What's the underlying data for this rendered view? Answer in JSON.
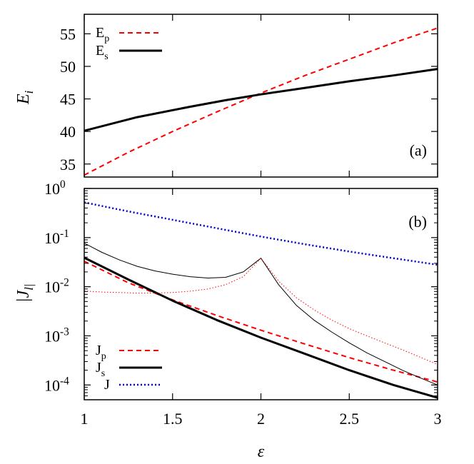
{
  "chart_data": [
    {
      "type": "line",
      "panel_label": "(a)",
      "ylabel": "E_i",
      "xlim": [
        1,
        3
      ],
      "ylim": [
        33,
        58
      ],
      "y_scale": "linear",
      "xticks": [
        1,
        1.5,
        2,
        2.5,
        3
      ],
      "xtick_labels": [
        "",
        "",
        "",
        "",
        ""
      ],
      "yticks": [
        35,
        40,
        45,
        50,
        55
      ],
      "ytick_labels": [
        "35",
        "40",
        "45",
        "50",
        "55"
      ],
      "legend_placement": "top-left",
      "series": [
        {
          "name": "E_p",
          "legend_main": "E",
          "legend_sub": "p",
          "color": "#ff0000",
          "style": "dashed",
          "width": 2,
          "points": [
            [
              1.0,
              33.3
            ],
            [
              1.25,
              36.8
            ],
            [
              1.5,
              40.0
            ],
            [
              1.75,
              43.0
            ],
            [
              2.0,
              45.9
            ],
            [
              2.25,
              48.6
            ],
            [
              2.5,
              51.1
            ],
            [
              2.75,
              53.6
            ],
            [
              3.0,
              55.9
            ]
          ]
        },
        {
          "name": "E_s",
          "legend_main": "E",
          "legend_sub": "s",
          "color": "#000000",
          "style": "solid",
          "width": 3,
          "points": [
            [
              1.0,
              40.1
            ],
            [
              1.3,
              42.2
            ],
            [
              1.6,
              43.8
            ],
            [
              1.8,
              44.8
            ],
            [
              2.0,
              45.7
            ],
            [
              2.25,
              46.7
            ],
            [
              2.5,
              47.7
            ],
            [
              2.75,
              48.6
            ],
            [
              3.0,
              49.6
            ]
          ]
        }
      ]
    },
    {
      "type": "line",
      "panel_label": "(b)",
      "ylabel": "|J_l|",
      "xlabel": "ε",
      "xlim": [
        1,
        3
      ],
      "ylim": [
        5e-05,
        1
      ],
      "y_scale": "log",
      "xticks": [
        1,
        1.5,
        2,
        2.5,
        3
      ],
      "xtick_labels": [
        "1",
        "1.5",
        "2",
        "2.5",
        "3"
      ],
      "yticks": [
        0.0001,
        0.001,
        0.01,
        0.1,
        1
      ],
      "ytick_labels": [
        [
          "10",
          "-4"
        ],
        [
          "10",
          "-3"
        ],
        [
          "10",
          "-2"
        ],
        [
          "10",
          "-1"
        ],
        [
          "10",
          "0"
        ]
      ],
      "legend_placement": "bottom-left",
      "series": [
        {
          "name": "J_p",
          "legend_main": "J",
          "legend_sub": "p",
          "color": "#ff0000",
          "style": "dashed",
          "width": 2,
          "in_legend": true,
          "points": [
            [
              1.0,
              0.033
            ],
            [
              1.25,
              0.012
            ],
            [
              1.5,
              0.0054
            ],
            [
              1.75,
              0.0026
            ],
            [
              2.0,
              0.0013
            ],
            [
              2.25,
              0.00068
            ],
            [
              2.5,
              0.00036
            ],
            [
              2.75,
              0.0002
            ],
            [
              3.0,
              0.000115
            ]
          ]
        },
        {
          "name": "J_s",
          "legend_main": "J",
          "legend_sub": "s",
          "color": "#000000",
          "style": "solid",
          "width": 3,
          "in_legend": true,
          "points": [
            [
              1.0,
              0.039
            ],
            [
              1.25,
              0.014
            ],
            [
              1.5,
              0.0052
            ],
            [
              1.75,
              0.0021
            ],
            [
              2.0,
              0.00092
            ],
            [
              2.25,
              0.00043
            ],
            [
              2.5,
              0.0002
            ],
            [
              2.75,
              0.0001
            ],
            [
              3.0,
              5.5e-05
            ]
          ]
        },
        {
          "name": "J",
          "legend_main": "J",
          "legend_sub": "",
          "color": "#0000cc",
          "style": "dotted",
          "width": 2.5,
          "in_legend": true,
          "points": [
            [
              1.0,
              0.52
            ],
            [
              1.25,
              0.34
            ],
            [
              1.5,
              0.23
            ],
            [
              1.75,
              0.155
            ],
            [
              2.0,
              0.105
            ],
            [
              2.25,
              0.073
            ],
            [
              2.5,
              0.052
            ],
            [
              2.75,
              0.038
            ],
            [
              3.0,
              0.028
            ]
          ]
        },
        {
          "name": "",
          "color": "#000000",
          "style": "solid",
          "width": 1,
          "in_legend": false,
          "points": [
            [
              1.0,
              0.077
            ],
            [
              1.1,
              0.05
            ],
            [
              1.2,
              0.035
            ],
            [
              1.3,
              0.026
            ],
            [
              1.4,
              0.021
            ],
            [
              1.5,
              0.018
            ],
            [
              1.6,
              0.016
            ],
            [
              1.7,
              0.015
            ],
            [
              1.8,
              0.0155
            ],
            [
              1.9,
              0.02
            ],
            [
              2.0,
              0.038
            ],
            [
              2.1,
              0.011
            ],
            [
              2.2,
              0.0042
            ],
            [
              2.3,
              0.0021
            ],
            [
              2.4,
              0.0012
            ],
            [
              2.5,
              0.00072
            ],
            [
              2.6,
              0.00045
            ],
            [
              2.7,
              0.0003
            ],
            [
              2.8,
              0.0002
            ],
            [
              2.9,
              0.00014
            ],
            [
              3.0,
              0.0001
            ]
          ]
        },
        {
          "name": "",
          "color": "#ff0000",
          "style": "dotted-thin",
          "width": 1,
          "in_legend": false,
          "points": [
            [
              1.0,
              0.0082
            ],
            [
              1.1,
              0.0078
            ],
            [
              1.2,
              0.0076
            ],
            [
              1.3,
              0.0074
            ],
            [
              1.4,
              0.0074
            ],
            [
              1.5,
              0.0076
            ],
            [
              1.6,
              0.0081
            ],
            [
              1.7,
              0.009
            ],
            [
              1.8,
              0.011
            ],
            [
              1.9,
              0.016
            ],
            [
              2.0,
              0.038
            ],
            [
              2.1,
              0.013
            ],
            [
              2.2,
              0.006
            ],
            [
              2.3,
              0.0034
            ],
            [
              2.4,
              0.0021
            ],
            [
              2.5,
              0.0014
            ],
            [
              2.6,
              0.001
            ],
            [
              2.7,
              0.00072
            ],
            [
              2.8,
              0.00052
            ],
            [
              2.9,
              0.00037
            ],
            [
              3.0,
              0.00026
            ]
          ]
        }
      ]
    }
  ]
}
